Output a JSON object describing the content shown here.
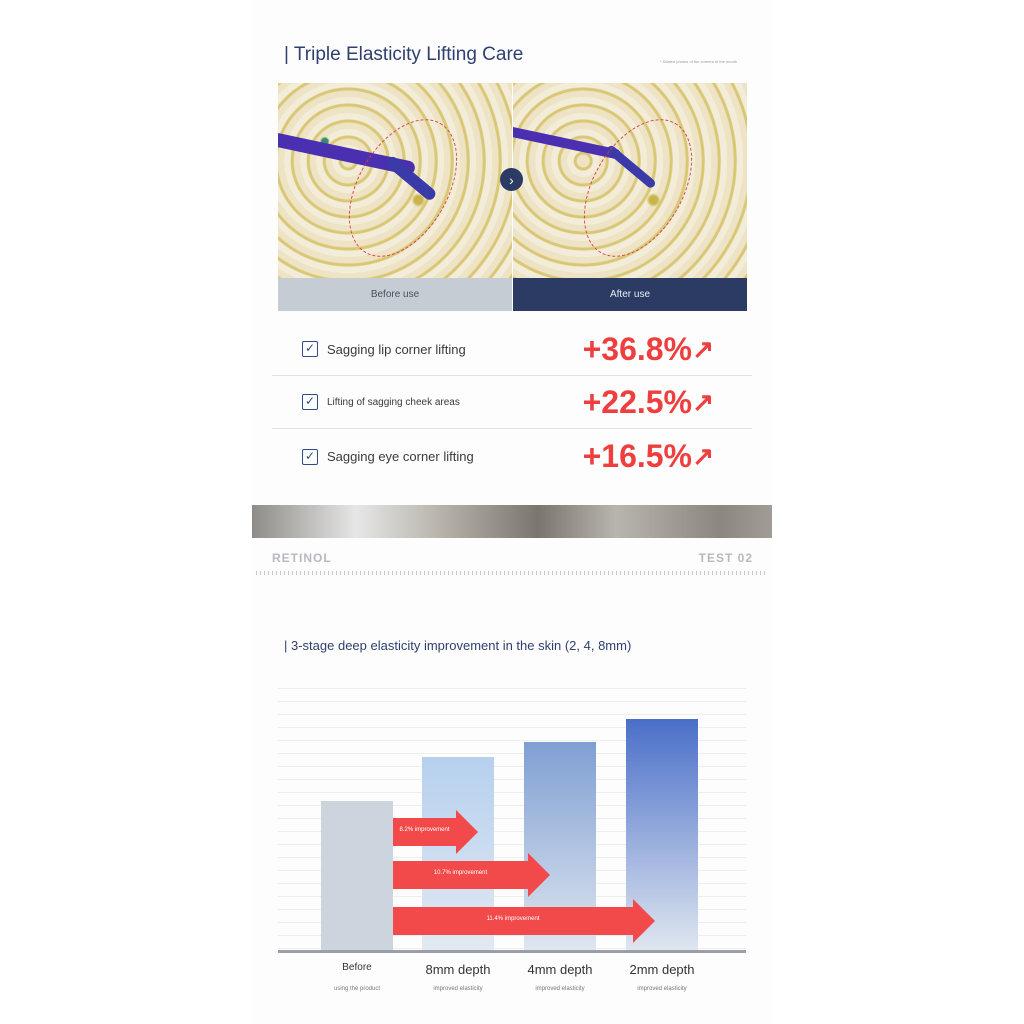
{
  "section1": {
    "title": "| Triple Elasticity Lifting Care",
    "note": "* Dilated photos of the corners of the mouth",
    "before_label": "Before use",
    "after_label": "After use",
    "arrow_icon": "chevron-right-icon",
    "results": [
      {
        "label": "Sagging lip corner lifting",
        "value": "+36.8%"
      },
      {
        "label": "Lifting of sagging cheek areas",
        "value": "+22.5%"
      },
      {
        "label": "Sagging eye corner lifting",
        "value": "+16.5%"
      }
    ]
  },
  "divider": {
    "left": "RETINOL",
    "right": "TEST 02"
  },
  "section2": {
    "title": "| 3-stage deep elasticity improvement in the skin (2, 4, 8mm)"
  },
  "chart_data": {
    "type": "bar",
    "categories": [
      "Before",
      "8mm depth",
      "4mm depth",
      "2mm depth"
    ],
    "sublabels": [
      "using the product",
      "improved elasticity",
      "improved elasticity",
      "improved elasticity"
    ],
    "values": [
      100,
      129.5,
      139.6,
      155
    ],
    "annotations": [
      "8.2% improvement",
      "10.7% improvement",
      "11.4% improvement"
    ],
    "colors": {
      "before": "#ccd4de",
      "bar_top": "#4a6fc8",
      "bar_bottom": "#dfe6f0",
      "arrow": "#f24a4a"
    },
    "grid": true
  }
}
